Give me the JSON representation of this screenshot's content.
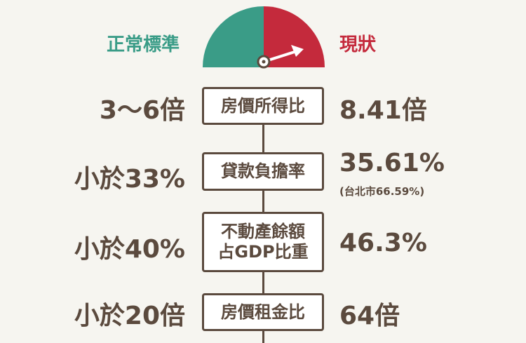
{
  "header": {
    "normal_label": "正常標準",
    "current_label": "現狀"
  },
  "colors": {
    "normal": "#3a9c87",
    "current": "#c42a3c",
    "text": "#5b4a3e"
  },
  "gauge": {
    "icon": "gauge-icon"
  },
  "rows": [
    {
      "standard": "3〜6倍",
      "metric": "房價所得比",
      "current": "8.41倍"
    },
    {
      "standard": "小於33%",
      "metric": "貸款負擔率",
      "current": "35.61%",
      "note": "(台北市66.59%)"
    },
    {
      "standard": "小於40%",
      "metric_line1": "不動產餘額",
      "metric_line2": "占GDP比重",
      "current": "46.3%"
    },
    {
      "standard": "小於20倍",
      "metric": "房價租金比",
      "current": "64倍"
    }
  ]
}
